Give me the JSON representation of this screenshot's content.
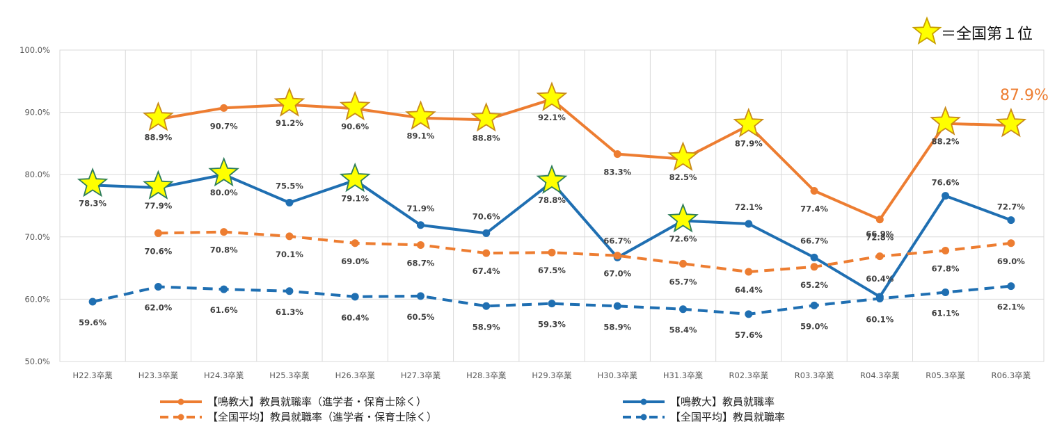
{
  "chart_data": {
    "type": "line",
    "categories": [
      "H22.3卒業",
      "H23.3卒業",
      "H24.3卒業",
      "H25.3卒業",
      "H26.3卒業",
      "H27.3卒業",
      "H28.3卒業",
      "H29.3卒業",
      "H30.3卒業",
      "H31.3卒業",
      "R02.3卒業",
      "R03.3卒業",
      "R04.3卒業",
      "R05.3卒業",
      "R06.3卒業"
    ],
    "ylim": [
      50,
      100
    ],
    "yticks": [
      50,
      60,
      70,
      80,
      90,
      100
    ],
    "ytick_labels": [
      "50.0%",
      "60.0%",
      "70.0%",
      "80.0%",
      "90.0%",
      "100.0%"
    ],
    "grid": true,
    "legend_position": "bottom",
    "series": [
      {
        "name": "【鳴教大】教員就職率（進学者・保育士除く）",
        "color": "#ED7D31",
        "dashed": false,
        "values": [
          null,
          88.9,
          90.7,
          91.2,
          90.6,
          89.1,
          88.8,
          92.1,
          83.3,
          82.5,
          87.9,
          77.4,
          72.8,
          88.2,
          87.9
        ],
        "labels": [
          "",
          "88.9%",
          "90.7%",
          "91.2%",
          "90.6%",
          "89.1%",
          "88.8%",
          "92.1%",
          "83.3%",
          "82.5%",
          "87.9%",
          "77.4%",
          "72.8%",
          "88.2%",
          ""
        ],
        "stars": [
          false,
          true,
          false,
          true,
          true,
          true,
          true,
          true,
          false,
          true,
          true,
          false,
          false,
          true,
          true
        ]
      },
      {
        "name": "【鳴教大】教員就職率",
        "color": "#1F6FB2",
        "dashed": false,
        "values": [
          78.3,
          77.9,
          80.0,
          75.5,
          79.1,
          71.9,
          70.6,
          78.8,
          66.7,
          72.6,
          72.1,
          66.7,
          60.4,
          76.6,
          72.7
        ],
        "labels": [
          "78.3%",
          "77.9%",
          "80.0%",
          "75.5%",
          "79.1%",
          "71.9%",
          "70.6%",
          "78.8%",
          "66.7%",
          "72.6%",
          "72.1%",
          "66.7%",
          "60.4%",
          "76.6%",
          "72.7%"
        ],
        "stars": [
          true,
          true,
          true,
          false,
          true,
          false,
          false,
          true,
          false,
          true,
          false,
          false,
          false,
          false,
          false
        ]
      },
      {
        "name": "【全国平均】教員就職率（進学者・保育士除く）",
        "color": "#ED7D31",
        "dashed": true,
        "values": [
          null,
          70.6,
          70.8,
          70.1,
          69.0,
          68.7,
          67.4,
          67.5,
          67.0,
          65.7,
          64.4,
          65.2,
          66.9,
          67.8,
          69.0
        ],
        "labels": [
          "",
          "70.6%",
          "70.8%",
          "70.1%",
          "69.0%",
          "68.7%",
          "67.4%",
          "67.5%",
          "67.0%",
          "65.7%",
          "64.4%",
          "65.2%",
          "66.9%",
          "67.8%",
          "69.0%"
        ],
        "stars": [
          false,
          false,
          false,
          false,
          false,
          false,
          false,
          false,
          false,
          false,
          false,
          false,
          false,
          false,
          false
        ]
      },
      {
        "name": "【全国平均】教員就職率",
        "color": "#1F6FB2",
        "dashed": true,
        "values": [
          59.6,
          62.0,
          61.6,
          61.3,
          60.4,
          60.5,
          58.9,
          59.3,
          58.9,
          58.4,
          57.6,
          59.0,
          60.1,
          61.1,
          62.1
        ],
        "labels": [
          "59.6%",
          "62.0%",
          "61.6%",
          "61.3%",
          "60.4%",
          "60.5%",
          "58.9%",
          "59.3%",
          "58.9%",
          "58.4%",
          "57.6%",
          "59.0%",
          "60.1%",
          "61.1%",
          "62.1%"
        ],
        "stars": [
          false,
          false,
          false,
          false,
          false,
          false,
          false,
          false,
          false,
          false,
          false,
          false,
          false,
          false,
          false
        ]
      }
    ],
    "annotations": {
      "highlight_label": "87.9%",
      "highlight_color": "#ED7D31",
      "star_legend": "＝全国第１位",
      "star_fill": "#FFFF00",
      "star_stroke": "#C9A000"
    }
  }
}
